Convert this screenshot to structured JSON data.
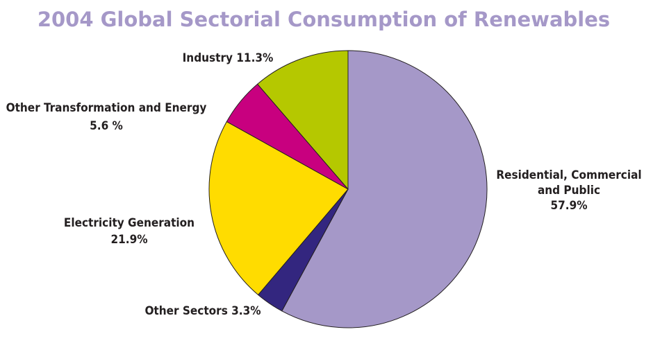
{
  "chart_data": {
    "type": "pie",
    "title": "2004 Global Sectorial Consumption of Renewables",
    "start": "12 o'clock",
    "direction": "clockwise",
    "slices": [
      {
        "name": "Residential, Commercial and Public",
        "value": 57.9,
        "color": "#a598c8",
        "label_lines": [
          "Residential, Commercial",
          "and Public",
          "57.9%"
        ]
      },
      {
        "name": "Other Sectors",
        "value": 3.3,
        "color": "#33267f",
        "label_lines": [
          "Other Sectors 3.3%"
        ]
      },
      {
        "name": "Electricity Generation",
        "value": 21.9,
        "color": "#ffdc00",
        "label_lines": [
          "Electricity Generation",
          "21.9%"
        ]
      },
      {
        "name": "Other Transformation and Energy",
        "value": 5.6,
        "color": "#c8007f",
        "label_lines": [
          "Other Transformation and Energy",
          "5.6 %"
        ]
      },
      {
        "name": "Industry",
        "value": 11.3,
        "color": "#b5c800",
        "label_lines": [
          "Industry 11.3%"
        ]
      }
    ]
  }
}
